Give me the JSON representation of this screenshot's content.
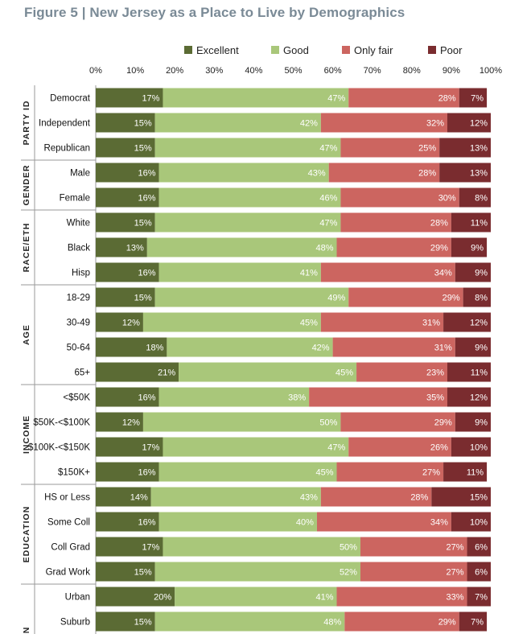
{
  "title": "Figure 5 | New Jersey as a Place to Live by Demographics",
  "chart_data": {
    "type": "bar",
    "orientation": "horizontal",
    "stacked": true,
    "title": "Figure 5 | New Jersey as a Place to Live by Demographics",
    "xlim": [
      0,
      100
    ],
    "x_ticks": [
      "0%",
      "10%",
      "20%",
      "30%",
      "40%",
      "50%",
      "60%",
      "70%",
      "80%",
      "90%",
      "100%"
    ],
    "legend_position": "top",
    "series": [
      {
        "name": "Excellent",
        "color": "#5b6b34",
        "label_color": "#ffffff",
        "values": [
          17,
          15,
          15,
          16,
          16,
          15,
          13,
          16,
          15,
          12,
          18,
          21,
          16,
          12,
          17,
          16,
          14,
          16,
          17,
          15,
          20,
          15
        ]
      },
      {
        "name": "Good",
        "color": "#a9c77a",
        "label_color": "#ffffff",
        "values": [
          47,
          42,
          47,
          43,
          46,
          47,
          48,
          41,
          49,
          45,
          42,
          45,
          38,
          50,
          47,
          45,
          43,
          40,
          50,
          52,
          41,
          48
        ]
      },
      {
        "name": "Only fair",
        "color": "#cc6560",
        "label_color": "#ffffff",
        "values": [
          28,
          32,
          25,
          28,
          30,
          28,
          29,
          34,
          29,
          31,
          31,
          23,
          35,
          29,
          26,
          27,
          28,
          34,
          27,
          27,
          33,
          29
        ]
      },
      {
        "name": "Poor",
        "color": "#7a2c2f",
        "label_color": "#ffffff",
        "values": [
          7,
          12,
          13,
          13,
          8,
          11,
          9,
          9,
          8,
          12,
          9,
          11,
          12,
          9,
          10,
          11,
          15,
          10,
          6,
          6,
          7,
          7
        ]
      }
    ],
    "categories": [
      "Democrat",
      "Independent",
      "Republican",
      "Male",
      "Female",
      "White",
      "Black",
      "Hisp",
      "18-29",
      "30-49",
      "50-64",
      "65+",
      "<$50K",
      "$50K-<$100K",
      "$100K-<$150K",
      "$150K+",
      "HS or Less",
      "Some Coll",
      "Coll Grad",
      "Grad Work",
      "Urban",
      "Suburb"
    ],
    "groups": [
      {
        "label": "PARTY ID",
        "count": 3
      },
      {
        "label": "GENDER",
        "count": 2
      },
      {
        "label": "RACE/ETH",
        "count": 3
      },
      {
        "label": "AGE",
        "count": 4
      },
      {
        "label": "INCOME",
        "count": 4
      },
      {
        "label": "EDUCATION",
        "count": 4
      },
      {
        "label": "N",
        "count": 2
      }
    ]
  }
}
